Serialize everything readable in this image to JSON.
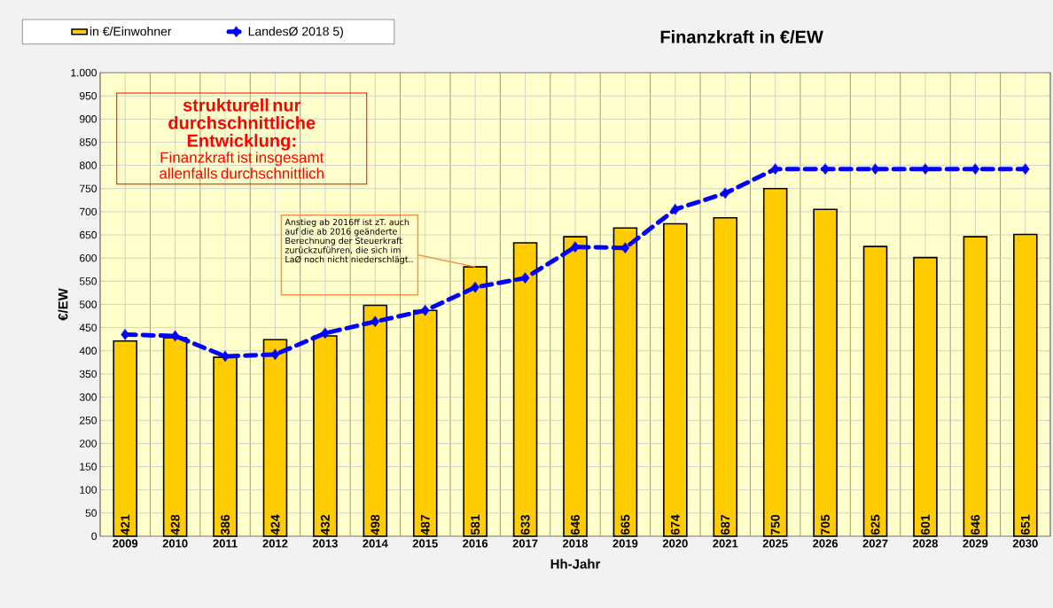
{
  "chart_data": {
    "type": "bar",
    "title": "Finanzkraft in €/EW",
    "xlabel": "Hh-Jahr",
    "ylabel": "€/EW",
    "categories": [
      "2009",
      "2010",
      "2011",
      "2012",
      "2013",
      "2014",
      "2015",
      "2016",
      "2017",
      "2018",
      "2019",
      "2020",
      "2021",
      "2025",
      "2026",
      "2027",
      "2028",
      "2029",
      "2030"
    ],
    "series": [
      {
        "name": "in €/Einwohner",
        "color": "#ffcc00",
        "values": [
          421,
          428,
          386,
          424,
          432,
          498,
          487,
          581,
          633,
          646,
          665,
          674,
          687,
          750,
          705,
          625,
          601,
          646,
          651
        ],
        "value_labels": [
          "421",
          "428",
          "386",
          "424",
          "432",
          "498",
          "487",
          "581",
          "633",
          "646",
          "665",
          "674",
          "687",
          "750",
          "705",
          "625",
          "601",
          "646",
          "651"
        ]
      },
      {
        "name": "LandesØ 2018  5)",
        "type": "line",
        "color": "#0000ff",
        "marker": "diamond",
        "line_style": "dashed",
        "values": [
          435,
          432,
          388,
          392,
          438,
          463,
          487,
          537,
          557,
          624,
          622,
          705,
          740,
          792,
          792,
          792,
          792,
          792,
          792
        ]
      }
    ],
    "ylim": [
      0,
      1000
    ],
    "yticks": [
      0,
      50,
      100,
      150,
      200,
      250,
      300,
      350,
      400,
      450,
      500,
      550,
      600,
      650,
      700,
      750,
      800,
      850,
      900,
      950,
      {
        "value": 1000,
        "label": "1.000"
      }
    ],
    "grid": true,
    "legend": "top left",
    "annotations": [
      "**strukturell nur durchschnittliche Entwicklung:**",
      "Finanzkraft ist insgesamt allenfalls durchschnittlich",
      {
        "text": "Anstieg ab 2016ff ist zT. auch auf die ab 2016 geänderte Berechnung der Steuerkraft zurückzuführen, die sich im LaØ noch nicht niederschlägt..",
        "x": "2016",
        "y": 581
      }
    ]
  }
}
